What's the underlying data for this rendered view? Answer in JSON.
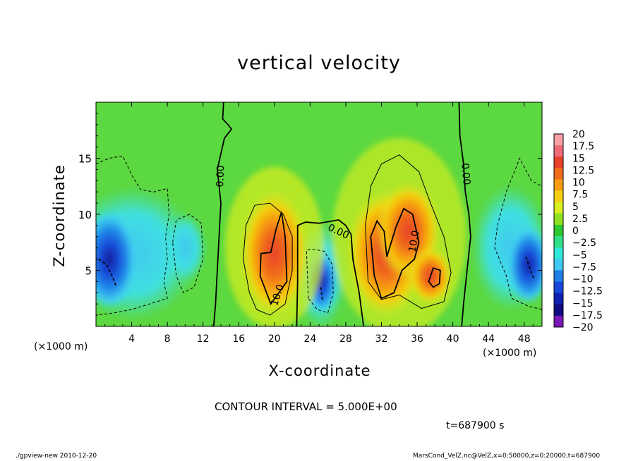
{
  "chart_data": {
    "type": "heatmap",
    "title": "vertical velocity",
    "xlabel": "X-coordinate",
    "ylabel": "Z-coordinate",
    "x_unit_label": "(×1000 m)",
    "x_ticks": [
      4,
      8,
      12,
      16,
      20,
      24,
      28,
      32,
      36,
      40,
      44,
      48
    ],
    "y_ticks": [
      5,
      10,
      15
    ],
    "xlim": [
      0,
      50
    ],
    "ylim": [
      0,
      20
    ],
    "colorbar_labels": [
      "20",
      "17.5",
      "15",
      "12.5",
      "10",
      "7.5",
      "5",
      "2.5",
      "0",
      "−2.5",
      "−5",
      "−7.5",
      "−10",
      "−12.5",
      "−15",
      "−17.5",
      "−20"
    ],
    "colorbar_colors": [
      "#f7a0a8",
      "#f06a78",
      "#e8402a",
      "#f06c1a",
      "#f79c10",
      "#f4d010",
      "#d8ee20",
      "#90e020",
      "#30c830",
      "#30e088",
      "#30e8d8",
      "#40c8f0",
      "#2080e8",
      "#1848d8",
      "#1020b0",
      "#100a80",
      "#7818b8"
    ],
    "contour_labels": [
      "0.00",
      "0.00",
      "0.00",
      "10.0",
      "10.0"
    ],
    "contour_interval_text": "CONTOUR INTERVAL = 5.000E+00",
    "time_text": "t=687900 s",
    "footer_left": "./gpview-new  2010-12-20",
    "footer_right": "MarsCond_VelZ.nc@VelZ,x=0:50000,z=0:20000,t=687900",
    "features": [
      {
        "kind": "updraft",
        "x": 20,
        "z": 6.5,
        "peak": 12.5
      },
      {
        "kind": "downdraft",
        "x": 25,
        "z": 4,
        "peak": -15
      },
      {
        "kind": "updraft",
        "x": 33.5,
        "z": 7.5,
        "peak": 15
      },
      {
        "kind": "downdraft",
        "x": 1.5,
        "z": 6,
        "peak": -12.5
      },
      {
        "kind": "downdraft",
        "x": 48.5,
        "z": 6,
        "peak": -12.5
      },
      {
        "kind": "downdraft",
        "x": 10,
        "z": 7,
        "peak": -7.5
      }
    ]
  }
}
